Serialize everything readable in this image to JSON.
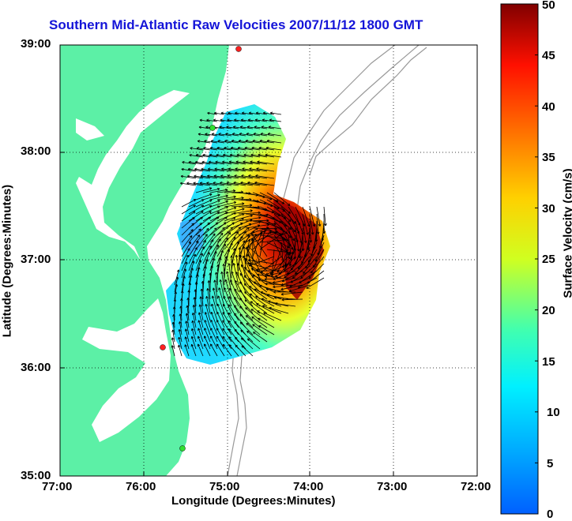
{
  "title": "Southern Mid-Atlantic Raw Velocities 2007/11/12 1800 GMT",
  "axes": {
    "xlabel": "Longitude (Degrees:Minutes)",
    "ylabel": "Latitude (Degrees:Minutes)",
    "x_ticks": [
      "77:00",
      "76:00",
      "75:00",
      "74:00",
      "73:00",
      "72:00"
    ],
    "y_ticks": [
      "39:00",
      "38:00",
      "37:00",
      "36:00",
      "35:00"
    ],
    "grid": "dotted"
  },
  "colorbar": {
    "label": "Surface Velocity (cm/s)",
    "ticks": [
      "50",
      "45",
      "40",
      "35",
      "30",
      "25",
      "20",
      "15",
      "10",
      "5",
      "0"
    ],
    "range": [
      0,
      50
    ],
    "colormap": "jet"
  },
  "colors": {
    "land": "#5cf0a6",
    "title": "#1414d8",
    "station_red": "#ff2020",
    "station_green": "#30e030"
  }
}
